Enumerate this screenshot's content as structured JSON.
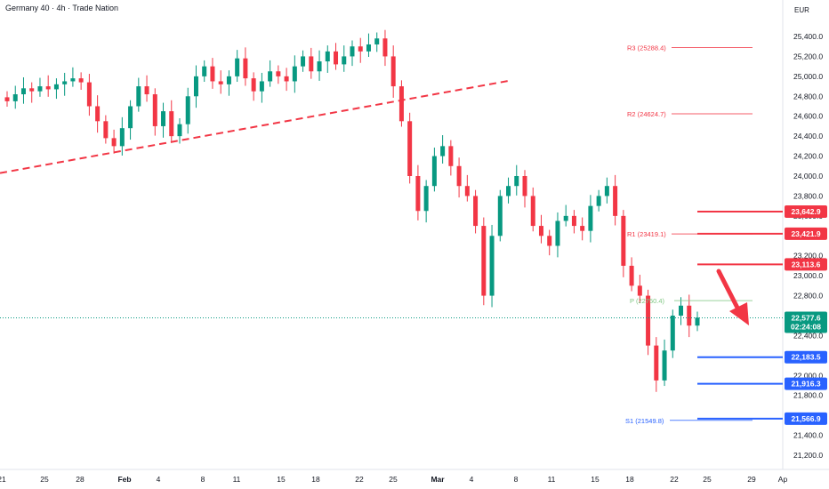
{
  "header": {
    "title": "Germany 40 · 4h · Trade Nation",
    "currency": "EUR"
  },
  "colors": {
    "bull": "#089981",
    "bear": "#f23645",
    "trendline": "#f23645",
    "resistance": "#f23645",
    "support": "#2962ff",
    "pivot": "#81c784",
    "current": "#089981",
    "arrow": "#f23645"
  },
  "chart_data": {
    "type": "candlestick",
    "symbol": "Germany 40",
    "interval": "4h",
    "ylim": [
      21100,
      25700
    ],
    "y_ticks": [
      21200,
      21400,
      21600,
      21800,
      22000,
      22200,
      22400,
      22600,
      22800,
      23000,
      23200,
      23400,
      23600,
      23800,
      24000,
      24200,
      24400,
      24600,
      24800,
      25000,
      25200,
      25400
    ],
    "y_tick_labels": [
      "21,200.0",
      "21,400.0",
      "21,600.0",
      "21,800.0",
      "22,000.0",
      "22,200.0",
      "22,400.0",
      "22,600.0",
      "22,800.0",
      "23,000.0",
      "23,200.0",
      "23,400.0",
      "23,600.0",
      "23,800.0",
      "24,000.0",
      "24,200.0",
      "24,400.0",
      "24,600.0",
      "24,800.0",
      "25,000.0",
      "25,200.0",
      "25,400.0"
    ],
    "x_labels": [
      "21",
      "25",
      "28",
      "Feb",
      "4",
      "8",
      "11",
      "15",
      "18",
      "22",
      "25",
      "Mar",
      "4",
      "8",
      "11",
      "15",
      "18",
      "22",
      "25",
      "29",
      "Ap"
    ],
    "series_close": [
      24750,
      24820,
      24880,
      24850,
      24900,
      24870,
      24920,
      24950,
      24980,
      24940,
      24700,
      24550,
      24380,
      24300,
      24480,
      24700,
      24900,
      24820,
      24500,
      24650,
      24400,
      24520,
      24800,
      25000,
      25100,
      24950,
      24920,
      25000,
      25180,
      24980,
      24850,
      24950,
      25050,
      25000,
      24950,
      25100,
      25200,
      25050,
      25150,
      25250,
      25120,
      25200,
      25300,
      25250,
      25320,
      25380,
      25200,
      24900,
      24550,
      24000,
      23650,
      23900,
      24200,
      24300,
      24100,
      23900,
      23800,
      23500,
      22800,
      23400,
      23800,
      23900,
      24000,
      23800,
      23500,
      23400,
      23300,
      23550,
      23600,
      23500,
      23450,
      23700,
      23800,
      23900,
      23600,
      23100,
      22900,
      22800,
      22300,
      21950,
      22250,
      22600,
      22700,
      22500,
      22580
    ],
    "pivot_levels": [
      {
        "label": "R3 (25288.4)",
        "value": 25288.4
      },
      {
        "label": "R2 (24624.7)",
        "value": 24624.7
      },
      {
        "label": "R1 (23419.1)",
        "value": 23419.1
      },
      {
        "label": "P (22750.4)",
        "value": 22750.4
      },
      {
        "label": "S1 (21549.8)",
        "value": 21549.8
      }
    ],
    "resistance_levels": [
      {
        "label": "23,642.9",
        "value": 23642.9
      },
      {
        "label": "23,421.9",
        "value": 23421.9
      },
      {
        "label": "23,113.6",
        "value": 23113.6
      }
    ],
    "support_levels": [
      {
        "label": "22,183.5",
        "value": 22183.5
      },
      {
        "label": "21,916.3",
        "value": 21916.3
      },
      {
        "label": "21,566.9",
        "value": 21566.9
      }
    ],
    "current_price": {
      "label": "22,577.6",
      "countdown": "02:24:08",
      "value": 22577.6
    },
    "trendline": {
      "start_value": 24030,
      "end_value": 24960
    }
  }
}
